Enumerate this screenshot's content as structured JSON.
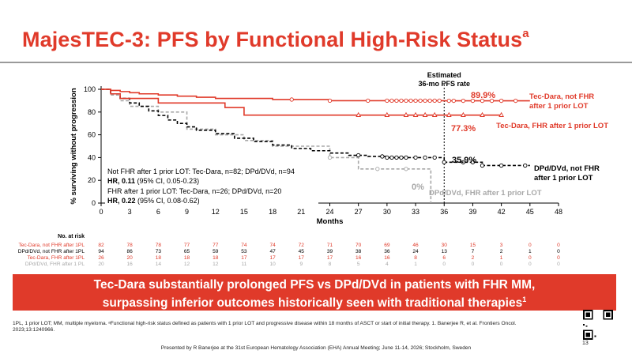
{
  "slide": {
    "title": "MajesTEC-3: PFS by Functional High-Risk Status",
    "title_superscript": "a",
    "page_number": "13",
    "banner_line1": "Tec-Dara substantially prolonged PFS vs DPd/DVd in patients with FHR MM,",
    "banner_line2": "surpassing inferior outcomes historically seen with traditional therapies",
    "banner_superscript": "1",
    "footnote_line1": "1PL, 1 prior LOT; MM, multiple myeloma. ᵃFunctional high-risk status defined as patients with 1 prior LOT and progressive disease within 18 months of ASCT or start of initial therapy. 1. Banerjee R, et al. Frontiers Oncol.",
    "footnote_line2": "2023;13:1240966.",
    "presented_by": "Presented by R Banerjee at the 31st European Hematology Association (EHA) Annual Meeting; June 11-14, 2026; Stockholm, Sweden",
    "colors": {
      "accent_red": "#e03a2a",
      "black": "#000000",
      "gray": "#a8a8a8"
    },
    "icons": [
      "qr-code-icon"
    ]
  },
  "chart_data": {
    "type": "line",
    "subtype": "kaplan-meier",
    "ylabel": "% surviving without progression",
    "xlabel": "Months",
    "x_ticks": [
      0,
      3,
      6,
      9,
      12,
      15,
      18,
      21,
      24,
      27,
      30,
      33,
      36,
      39,
      42,
      45,
      48
    ],
    "y_ticks": [
      0,
      20,
      40,
      60,
      80,
      100
    ],
    "xlim": [
      0,
      48
    ],
    "ylim": [
      0,
      100
    ],
    "grid": false,
    "reference_line": {
      "x": 36,
      "label_line1": "Estimated",
      "label_line2": "36-mo PFS rate"
    },
    "series": [
      {
        "name": "Tec-Dara, not FHR after 1 prior LOT",
        "label_line1": "Tec-Dara, not FHR",
        "label_line2": "after 1 prior LOT",
        "color": "#e03a2a",
        "dash": "solid",
        "rate_label": "89.9%",
        "x": [
          0,
          1,
          2,
          3,
          4,
          6,
          8,
          10,
          12,
          15,
          18,
          21,
          24,
          27,
          30,
          33,
          36,
          40,
          45
        ],
        "y": [
          100,
          99,
          98,
          97,
          96,
          95,
          94,
          93,
          92,
          92,
          91,
          91,
          90,
          90,
          90,
          90,
          89.9,
          89.9,
          89.9
        ],
        "censor_x": [
          20,
          24,
          28,
          30,
          30.5,
          31,
          31.5,
          32,
          32.5,
          33,
          33.5,
          34,
          34.5,
          35,
          35.5,
          36.5,
          37,
          38,
          39,
          40,
          41,
          42,
          43.5
        ]
      },
      {
        "name": "Tec-Dara, FHR after 1 prior LOT",
        "label_line1": "Tec-Dara, FHR after 1 prior LOT",
        "color": "#e03a2a",
        "dash": "solid",
        "rate_label": "77.3%",
        "x": [
          0,
          1,
          2,
          4,
          6,
          10,
          13,
          15,
          18,
          30,
          36,
          40,
          42
        ],
        "y": [
          100,
          96,
          92,
          92,
          88,
          88,
          84,
          77.3,
          77.3,
          77.3,
          77.3,
          77.3,
          77.3
        ],
        "censor_x": [
          27,
          30,
          32,
          33,
          34,
          35,
          36.5,
          38,
          40,
          42
        ]
      },
      {
        "name": "DPd/DVd, not FHR after 1 prior LOT",
        "label_line1": "DPd/DVd, not FHR",
        "label_line2": "after 1 prior LOT",
        "color": "#000000",
        "dash": "dashed",
        "rate_label": "35.9%",
        "x": [
          0,
          1,
          2,
          3,
          4,
          5,
          6,
          7,
          8,
          9,
          10,
          12,
          14,
          16,
          18,
          20,
          22,
          24,
          26,
          28,
          30,
          33,
          35,
          36,
          37,
          40,
          45
        ],
        "y": [
          100,
          96,
          92,
          88,
          85,
          81,
          77,
          73,
          70,
          67,
          64,
          61,
          57,
          54,
          51,
          48,
          46,
          44,
          42,
          41,
          40,
          40,
          40,
          35.9,
          35.9,
          33,
          33
        ],
        "censor_x": [
          27,
          29.5,
          30,
          30.5,
          31,
          31.5,
          32,
          33,
          34,
          35,
          36,
          38,
          39,
          40,
          42,
          44.5
        ]
      },
      {
        "name": "DPd/DVd, FHR after 1 prior LOT",
        "label_line1": "DPd/DVd, FHR after 1 prior LOT",
        "color": "#a8a8a8",
        "dash": "dashed",
        "rate_label": "0%",
        "x": [
          0,
          1,
          2,
          3,
          6,
          9,
          12,
          15,
          18,
          21,
          24,
          27,
          30,
          33,
          34,
          34.6
        ],
        "y": [
          100,
          95,
          90,
          85,
          80,
          65,
          60,
          55,
          50,
          50,
          40,
          30,
          30,
          30,
          30,
          0
        ],
        "censor_x": [
          24,
          29,
          32
        ]
      }
    ],
    "stats_box": {
      "line1": "Not FHR after 1 prior LOT: Tec-Dara, n=82; DPd/DVd, n=94",
      "line2_bold": "HR, 0.11",
      "line2_rest": " (95% CI, 0.05-0.23)",
      "line3": "FHR after 1 prior LOT: Tec-Dara, n=26; DPd/DVd, n=20",
      "line4_bold": "HR, 0.22",
      "line4_rest": " (95% CI, 0.08-0.62)"
    },
    "risk_table": {
      "header": "No. at risk",
      "rows": [
        {
          "label": "Tec-Dara, not FHR after 1PL",
          "color": "#e03a2a",
          "values": [
            "82",
            "78",
            "78",
            "77",
            "77",
            "74",
            "74",
            "72",
            "71",
            "70",
            "69",
            "46",
            "30",
            "15",
            "3",
            "0",
            "0"
          ]
        },
        {
          "label": "DPd/DVd, not FHR after 1PL",
          "color": "#000000",
          "values": [
            "94",
            "86",
            "73",
            "65",
            "59",
            "53",
            "47",
            "45",
            "39",
            "38",
            "36",
            "24",
            "13",
            "7",
            "2",
            "1",
            "0"
          ]
        },
        {
          "label": "Tec-Dara, FHR after 1PL",
          "color": "#e03a2a",
          "values": [
            "26",
            "20",
            "18",
            "18",
            "18",
            "17",
            "17",
            "17",
            "17",
            "16",
            "16",
            "8",
            "6",
            "2",
            "1",
            "0",
            "0"
          ]
        },
        {
          "label": "DPd/DVd, FHR after 1 PL",
          "color": "#a8a8a8",
          "values": [
            "20",
            "16",
            "14",
            "12",
            "12",
            "11",
            "10",
            "9",
            "8",
            "5",
            "4",
            "1",
            "0",
            "0",
            "0",
            "0",
            "0"
          ]
        }
      ]
    }
  }
}
